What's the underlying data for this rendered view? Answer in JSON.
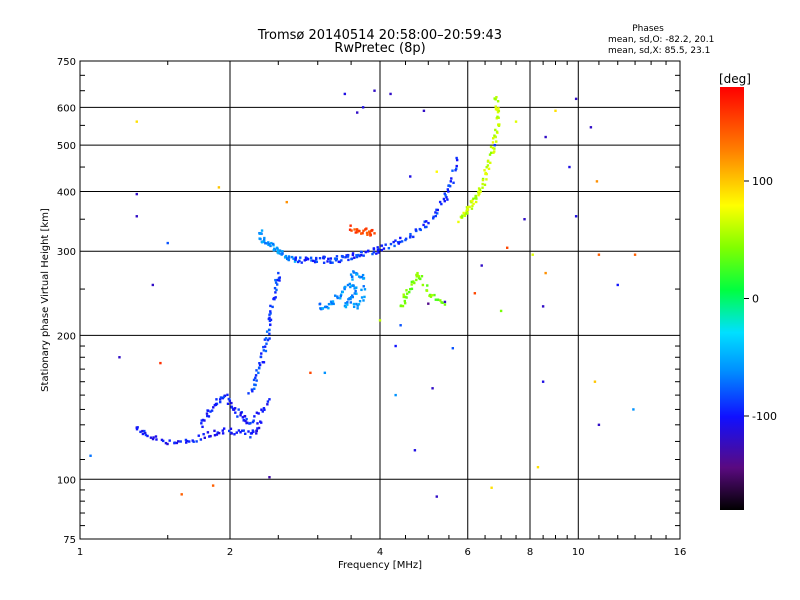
{
  "chart_data": {
    "type": "scatter",
    "title": "Tromsø 20140514 20:58:00–20:59:43",
    "subtitle": "RwPretec (8p)",
    "phase_info": {
      "heading": "Phases",
      "line_o": "mean, sd,O: -82.2, 20.1",
      "line_x": "mean, sd,X:  85.5, 23.1"
    },
    "xlabel": "Frequency [MHz]",
    "ylabel": "Stationary phase Virtual Height [km]",
    "x_scale": "log",
    "y_scale": "log",
    "xlim": [
      1,
      16
    ],
    "ylim": [
      75,
      750
    ],
    "x_ticks": [
      "1",
      "2",
      "4",
      "6",
      "8",
      "10",
      "16"
    ],
    "x_tick_values": [
      1,
      2,
      4,
      6,
      8,
      10,
      16
    ],
    "y_ticks": [
      "75",
      "100",
      "200",
      "300",
      "400",
      "500",
      "600",
      "750"
    ],
    "y_tick_values": [
      75,
      100,
      200,
      300,
      400,
      500,
      600,
      750
    ],
    "grid": true,
    "colorbar": {
      "label": "[deg]",
      "ticks": [
        "100",
        "0",
        "-100"
      ],
      "tick_values": [
        100,
        0,
        -100
      ],
      "range": [
        -180,
        180
      ]
    },
    "traces": [
      {
        "name": "",
        "phase": -100,
        "points": [
          [
            1.3,
            128
          ],
          [
            1.35,
            125
          ],
          [
            1.4,
            122
          ],
          [
            1.5,
            120
          ],
          [
            1.6,
            119
          ],
          [
            1.7,
            121
          ],
          [
            1.8,
            124
          ],
          [
            1.9,
            126
          ],
          [
            2.0,
            127
          ],
          [
            2.1,
            125
          ],
          [
            2.2,
            124
          ],
          [
            2.25,
            126
          ],
          [
            2.3,
            132
          ]
        ]
      },
      {
        "name": "",
        "phase": -95,
        "points": [
          [
            1.75,
            130
          ],
          [
            1.8,
            137
          ],
          [
            1.85,
            141
          ],
          [
            1.9,
            146
          ],
          [
            1.95,
            150
          ],
          [
            2.0,
            145
          ],
          [
            2.05,
            140
          ],
          [
            2.1,
            136
          ],
          [
            2.15,
            134
          ],
          [
            2.2,
            131
          ],
          [
            2.3,
            139
          ],
          [
            2.4,
            147
          ]
        ]
      },
      {
        "name": "",
        "phase": -85,
        "points": [
          [
            2.2,
            150
          ],
          [
            2.25,
            160
          ],
          [
            2.3,
            170
          ],
          [
            2.32,
            180
          ],
          [
            2.35,
            190
          ],
          [
            2.38,
            200
          ],
          [
            2.4,
            210
          ],
          [
            2.42,
            225
          ],
          [
            2.45,
            240
          ],
          [
            2.48,
            255
          ],
          [
            2.5,
            270
          ]
        ]
      },
      {
        "name": "",
        "phase": -60,
        "points": [
          [
            2.3,
            330
          ],
          [
            2.32,
            320
          ],
          [
            2.35,
            315
          ],
          [
            2.4,
            310
          ],
          [
            2.45,
            305
          ],
          [
            2.5,
            300
          ],
          [
            2.55,
            296
          ],
          [
            2.6,
            292
          ],
          [
            2.65,
            290
          ],
          [
            2.7,
            289
          ]
        ]
      },
      {
        "name": "",
        "phase": -90,
        "points": [
          [
            2.7,
            288
          ],
          [
            2.8,
            287
          ],
          [
            2.9,
            287
          ],
          [
            3.0,
            287
          ],
          [
            3.1,
            288
          ],
          [
            3.2,
            288
          ],
          [
            3.3,
            289
          ],
          [
            3.4,
            290
          ],
          [
            3.5,
            292
          ],
          [
            3.6,
            294
          ],
          [
            3.7,
            296
          ],
          [
            3.9,
            300
          ],
          [
            4.0,
            303
          ],
          [
            4.2,
            308
          ],
          [
            4.4,
            315
          ],
          [
            4.6,
            322
          ],
          [
            4.8,
            332
          ],
          [
            5.0,
            345
          ],
          [
            5.2,
            360
          ],
          [
            5.4,
            385
          ],
          [
            5.5,
            405
          ],
          [
            5.6,
            430
          ],
          [
            5.7,
            470
          ]
        ]
      },
      {
        "name": "",
        "phase": -60,
        "points": [
          [
            3.0,
            230
          ],
          [
            3.1,
            230
          ],
          [
            3.2,
            232
          ],
          [
            3.3,
            240
          ],
          [
            3.4,
            250
          ],
          [
            3.5,
            258
          ],
          [
            3.6,
            250
          ],
          [
            3.5,
            240
          ],
          [
            3.4,
            232
          ],
          [
            3.6,
            230
          ],
          [
            3.7,
            240
          ],
          [
            3.7,
            265
          ],
          [
            3.6,
            270
          ],
          [
            3.5,
            268
          ]
        ]
      },
      {
        "name": "",
        "phase": 60,
        "points": [
          [
            5.8,
            350
          ],
          [
            5.9,
            355
          ],
          [
            6.0,
            365
          ],
          [
            6.1,
            375
          ],
          [
            6.2,
            385
          ],
          [
            6.3,
            395
          ],
          [
            6.4,
            410
          ],
          [
            6.5,
            430
          ],
          [
            6.6,
            455
          ],
          [
            6.7,
            480
          ],
          [
            6.8,
            510
          ],
          [
            6.85,
            540
          ],
          [
            6.9,
            570
          ],
          [
            6.9,
            600
          ],
          [
            6.85,
            630
          ]
        ]
      },
      {
        "name": "",
        "phase": 40,
        "points": [
          [
            4.4,
            230
          ],
          [
            4.5,
            240
          ],
          [
            4.6,
            252
          ],
          [
            4.7,
            262
          ],
          [
            4.8,
            270
          ],
          [
            5.0,
            248
          ],
          [
            5.2,
            238
          ],
          [
            5.4,
            232
          ]
        ]
      },
      {
        "name": "",
        "phase": 150,
        "points": [
          [
            3.5,
            335
          ],
          [
            3.6,
            333
          ],
          [
            3.7,
            331
          ],
          [
            3.8,
            329
          ],
          [
            3.9,
            327
          ]
        ]
      }
    ],
    "scattered_points": [
      {
        "x": 1.05,
        "y": 112,
        "phase": -70
      },
      {
        "x": 1.2,
        "y": 180,
        "phase": -120
      },
      {
        "x": 1.3,
        "y": 560,
        "phase": 90
      },
      {
        "x": 1.3,
        "y": 395,
        "phase": -120
      },
      {
        "x": 1.3,
        "y": 355,
        "phase": -120
      },
      {
        "x": 1.4,
        "y": 255,
        "phase": -120
      },
      {
        "x": 1.45,
        "y": 175,
        "phase": 160
      },
      {
        "x": 1.5,
        "y": 312,
        "phase": -80
      },
      {
        "x": 1.6,
        "y": 93,
        "phase": 140
      },
      {
        "x": 1.85,
        "y": 97,
        "phase": 140
      },
      {
        "x": 1.9,
        "y": 408,
        "phase": 100
      },
      {
        "x": 2.4,
        "y": 101,
        "phase": -130
      },
      {
        "x": 2.6,
        "y": 380,
        "phase": 120
      },
      {
        "x": 3.4,
        "y": 640,
        "phase": -110
      },
      {
        "x": 3.6,
        "y": 585,
        "phase": -120
      },
      {
        "x": 3.9,
        "y": 650,
        "phase": -120
      },
      {
        "x": 4.2,
        "y": 640,
        "phase": -120
      },
      {
        "x": 4.6,
        "y": 430,
        "phase": -110
      },
      {
        "x": 4.9,
        "y": 590,
        "phase": -120
      },
      {
        "x": 5.2,
        "y": 440,
        "phase": 80
      },
      {
        "x": 5.6,
        "y": 188,
        "phase": -80
      },
      {
        "x": 6.2,
        "y": 245,
        "phase": 150
      },
      {
        "x": 6.4,
        "y": 280,
        "phase": -120
      },
      {
        "x": 6.7,
        "y": 96,
        "phase": 90
      },
      {
        "x": 7.0,
        "y": 225,
        "phase": 40
      },
      {
        "x": 7.5,
        "y": 560,
        "phase": 70
      },
      {
        "x": 7.8,
        "y": 350,
        "phase": -120
      },
      {
        "x": 8.1,
        "y": 295,
        "phase": 70
      },
      {
        "x": 8.3,
        "y": 106,
        "phase": 90
      },
      {
        "x": 8.6,
        "y": 520,
        "phase": -120
      },
      {
        "x": 8.6,
        "y": 270,
        "phase": 120
      },
      {
        "x": 9.0,
        "y": 590,
        "phase": 90
      },
      {
        "x": 9.6,
        "y": 450,
        "phase": -110
      },
      {
        "x": 9.9,
        "y": 625,
        "phase": -120
      },
      {
        "x": 9.9,
        "y": 355,
        "phase": -110
      },
      {
        "x": 10.6,
        "y": 545,
        "phase": -120
      },
      {
        "x": 10.8,
        "y": 160,
        "phase": 100
      },
      {
        "x": 10.9,
        "y": 420,
        "phase": 120
      },
      {
        "x": 11.0,
        "y": 130,
        "phase": -120
      },
      {
        "x": 11.0,
        "y": 295,
        "phase": 140
      },
      {
        "x": 12.0,
        "y": 255,
        "phase": -100
      },
      {
        "x": 12.9,
        "y": 140,
        "phase": -60
      },
      {
        "x": 13.0,
        "y": 295,
        "phase": 140
      },
      {
        "x": 6.8,
        "y": 500,
        "phase": -90
      },
      {
        "x": 8.5,
        "y": 160,
        "phase": -110
      },
      {
        "x": 8.5,
        "y": 230,
        "phase": -120
      },
      {
        "x": 5.2,
        "y": 92,
        "phase": -120
      },
      {
        "x": 3.7,
        "y": 600,
        "phase": -110
      },
      {
        "x": 4.0,
        "y": 215,
        "phase": 60
      },
      {
        "x": 4.4,
        "y": 210,
        "phase": -80
      },
      {
        "x": 2.9,
        "y": 167,
        "phase": 150
      },
      {
        "x": 3.1,
        "y": 167,
        "phase": -60
      },
      {
        "x": 4.3,
        "y": 190,
        "phase": -100
      },
      {
        "x": 5.1,
        "y": 155,
        "phase": -120
      },
      {
        "x": 4.7,
        "y": 115,
        "phase": -110
      },
      {
        "x": 4.3,
        "y": 150,
        "phase": -60
      },
      {
        "x": 5.0,
        "y": 233,
        "phase": -140
      },
      {
        "x": 5.4,
        "y": 235,
        "phase": -120
      },
      {
        "x": 7.2,
        "y": 305,
        "phase": 150
      }
    ]
  }
}
